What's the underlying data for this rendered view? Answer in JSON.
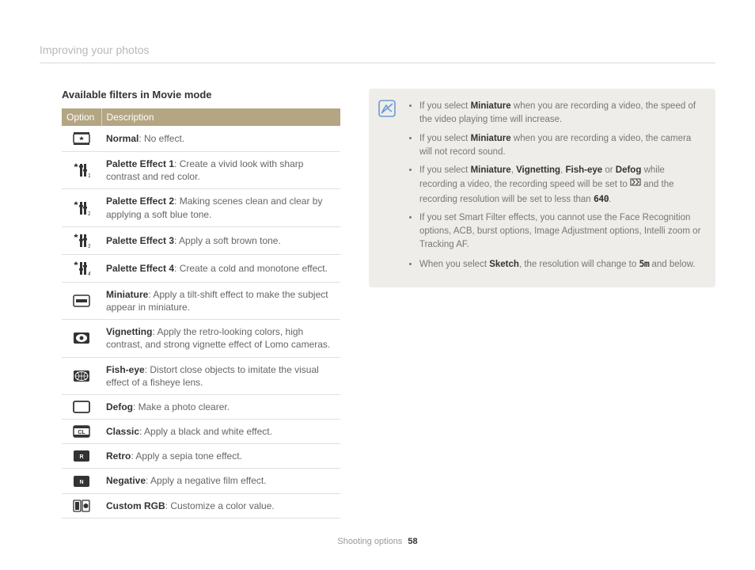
{
  "page": {
    "breadcrumb": "Improving your photos",
    "footer_section": "Shooting options",
    "footer_page": "58"
  },
  "left": {
    "title": "Available filters in Movie mode",
    "header_option": "Option",
    "header_description": "Description",
    "rows": [
      {
        "name": "Normal",
        "desc": ": No effect."
      },
      {
        "name": "Palette Effect 1",
        "desc": ": Create a vivid look with sharp contrast and red color."
      },
      {
        "name": "Palette Effect 2",
        "desc": ": Making scenes clean and clear by applying a soft blue tone."
      },
      {
        "name": "Palette Effect 3",
        "desc": ": Apply a soft brown tone."
      },
      {
        "name": "Palette Effect 4",
        "desc": ": Create a cold and monotone effect."
      },
      {
        "name": "Miniature",
        "desc": ": Apply a tilt-shift effect to make the subject appear in miniature."
      },
      {
        "name": "Vignetting",
        "desc": ": Apply the retro-looking colors, high contrast, and strong vignette effect of Lomo cameras."
      },
      {
        "name": "Fish-eye",
        "desc": ": Distort close objects to imitate the visual effect of a fisheye lens."
      },
      {
        "name": "Defog",
        "desc": ": Make a photo clearer."
      },
      {
        "name": "Classic",
        "desc": ": Apply a black and white effect."
      },
      {
        "name": "Retro",
        "desc": ": Apply a sepia tone effect."
      },
      {
        "name": "Negative",
        "desc": ": Apply a negative film effect."
      },
      {
        "name": "Custom RGB",
        "desc": ": Customize a color value."
      }
    ]
  },
  "notes": {
    "items": [
      {
        "pre": "If you select ",
        "b1": "Miniature",
        "post": " when you are recording a video, the speed of the video playing time will increase."
      },
      {
        "pre": "If you select ",
        "b1": "Miniature",
        "post": " when you are recording a video, the camera will not record sound."
      },
      {
        "pre": "If you select ",
        "bolds": [
          "Miniature",
          "Vignetting",
          "Fish-eye",
          "Defog"
        ],
        "mid": " while recording a video, the recording speed will be set to ",
        "icon1": true,
        "mid2": " and the recording resolution will be set to less than ",
        "icon2": "640",
        "post": "."
      },
      {
        "pre": "If you set Smart Filter effects, you cannot use the Face Recognition options, ACB, burst options, Image Adjustment options, Intelli zoom or Tracking AF."
      },
      {
        "pre": "When you select ",
        "b1": "Sketch",
        "mid": ", the resolution will change to ",
        "icon2": "5m",
        "post": " and below."
      }
    ]
  },
  "colors": {
    "header_bg": "#b4a583",
    "note_bg": "#efedea",
    "note_icon_border": "#6b9bd1",
    "text_muted": "#777"
  }
}
